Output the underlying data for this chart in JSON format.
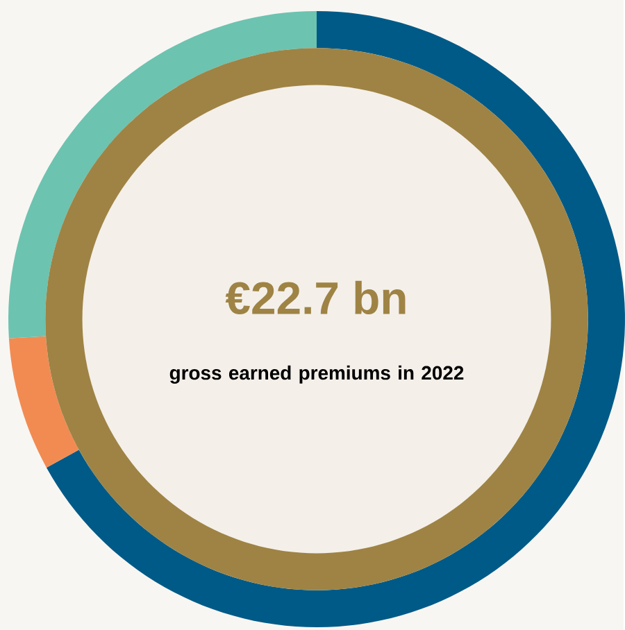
{
  "chart_data": {
    "type": "donut",
    "title": "€22.7 bn",
    "subtitle": "gross earned premiums in 2022",
    "categories": [
      null,
      null,
      null
    ],
    "values": [
      67,
      7,
      26
    ],
    "colors": [
      "#005a87",
      "#f28b52",
      "#6cc3b0"
    ]
  }
}
